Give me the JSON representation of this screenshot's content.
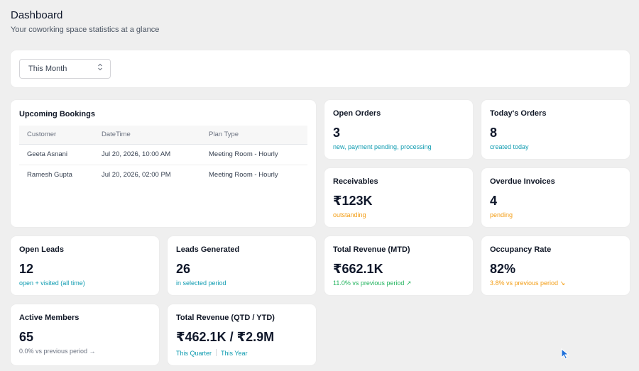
{
  "header": {
    "title": "Dashboard",
    "subtitle": "Your coworking space statistics at a glance"
  },
  "filter": {
    "period": "This Month",
    "chevron_icon": "chevron-up-down-icon"
  },
  "bookings": {
    "title": "Upcoming Bookings",
    "columns": [
      "Customer",
      "DateTime",
      "Plan Type"
    ],
    "rows": [
      {
        "customer": "Geeta Asnani",
        "datetime": "Jul 20, 2026, 10:00 AM",
        "plan": "Meeting Room - Hourly"
      },
      {
        "customer": "Ramesh Gupta",
        "datetime": "Jul 20, 2026, 02:00 PM",
        "plan": "Meeting Room - Hourly"
      }
    ]
  },
  "stats": {
    "open_orders": {
      "title": "Open Orders",
      "value": "3",
      "sub": "new, payment pending, processing"
    },
    "todays_orders": {
      "title": "Today's Orders",
      "value": "8",
      "sub": "created today"
    },
    "receivables": {
      "title": "Receivables",
      "value": "₹123K",
      "sub": "outstanding"
    },
    "overdue_invoices": {
      "title": "Overdue Invoices",
      "value": "4",
      "sub": "pending"
    },
    "open_leads": {
      "title": "Open Leads",
      "value": "12",
      "sub": "open + visited (all time)"
    },
    "leads_generated": {
      "title": "Leads Generated",
      "value": "26",
      "sub": "in selected period"
    },
    "total_revenue_mtd": {
      "title": "Total Revenue (MTD)",
      "value": "₹662.1K",
      "sub": "11.0% vs previous period ↗"
    },
    "occupancy_rate": {
      "title": "Occupancy Rate",
      "value": "82%",
      "sub": "3.8% vs previous period ↘"
    },
    "active_members": {
      "title": "Active Members",
      "value": "65",
      "sub": "0.0% vs previous period →"
    },
    "total_revenue_qtd_ytd": {
      "title": "Total Revenue (QTD / YTD)",
      "value": "₹462.1K / ₹2.9M",
      "sub_left": "This Quarter",
      "sub_right": "This Year"
    }
  },
  "colors": {
    "teal": "#0e9bb0",
    "orange": "#f39c12",
    "green": "#22b35e",
    "cursor": "#1e6fd9"
  }
}
